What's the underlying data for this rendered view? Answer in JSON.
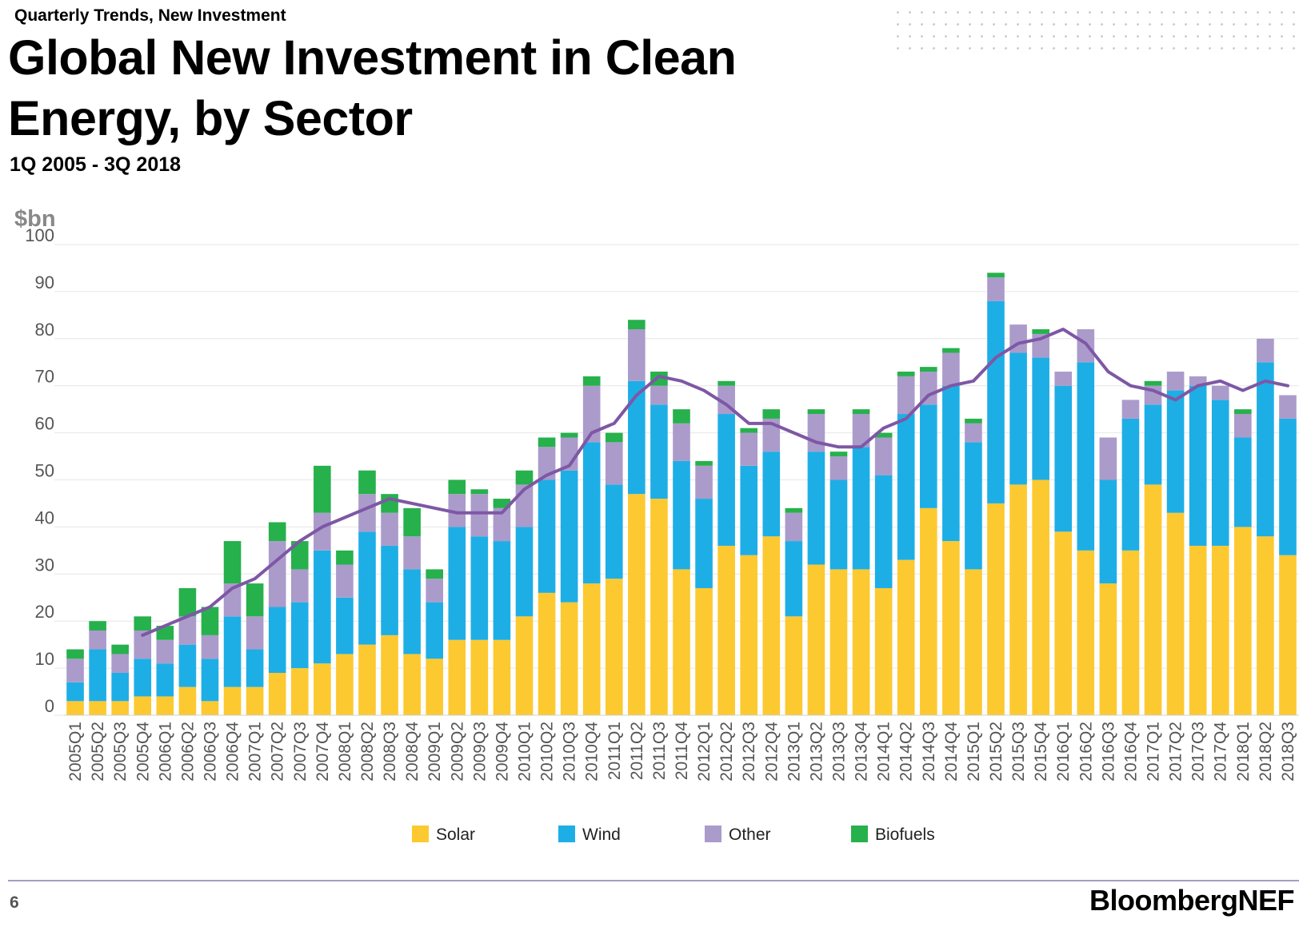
{
  "header": {
    "kicker": "Quarterly Trends, New Investment",
    "title": "Global New Investment in Clean Energy, by Sector",
    "subtitle": "1Q 2005 - 3Q 2018"
  },
  "footer": {
    "page_number": "6",
    "brand": "BloombergNEF"
  },
  "colors": {
    "solar": "#fcc931",
    "wind": "#1eaee6",
    "other": "#ab9bcb",
    "biofuels": "#26b14c",
    "trend": "#7e57a5",
    "axis_text": "#555555",
    "grid": "#e6e6e6"
  },
  "chart_data": {
    "type": "bar",
    "stacked": true,
    "ylabel": "$bn",
    "ylim": [
      0,
      100
    ],
    "yticks": [
      0,
      10,
      20,
      30,
      40,
      50,
      60,
      70,
      80,
      90,
      100
    ],
    "grid": true,
    "legend_position": "bottom",
    "categories": [
      "2005Q1",
      "2005Q2",
      "2005Q3",
      "2005Q4",
      "2006Q1",
      "2006Q2",
      "2006Q3",
      "2006Q4",
      "2007Q1",
      "2007Q2",
      "2007Q3",
      "2007Q4",
      "2008Q1",
      "2008Q2",
      "2008Q3",
      "2008Q4",
      "2009Q1",
      "2009Q2",
      "2009Q3",
      "2009Q4",
      "2010Q1",
      "2010Q2",
      "2010Q3",
      "2010Q4",
      "2011Q1",
      "2011Q2",
      "2011Q3",
      "2011Q4",
      "2012Q1",
      "2012Q2",
      "2012Q3",
      "2012Q4",
      "2013Q1",
      "2013Q2",
      "2013Q3",
      "2013Q4",
      "2014Q1",
      "2014Q2",
      "2014Q3",
      "2014Q4",
      "2015Q1",
      "2015Q2",
      "2015Q3",
      "2015Q4",
      "2016Q1",
      "2016Q2",
      "2016Q3",
      "2016Q4",
      "2017Q1",
      "2017Q2",
      "2017Q3",
      "2017Q4",
      "2018Q1",
      "2018Q2",
      "2018Q3"
    ],
    "series": [
      {
        "name": "Solar",
        "color": "#fcc931",
        "values": [
          3,
          3,
          3,
          4,
          4,
          6,
          3,
          6,
          6,
          9,
          10,
          11,
          13,
          15,
          17,
          13,
          12,
          16,
          16,
          16,
          21,
          26,
          24,
          28,
          29,
          47,
          46,
          31,
          27,
          36,
          34,
          38,
          21,
          32,
          31,
          31,
          27,
          33,
          44,
          37,
          31,
          45,
          49,
          50,
          39,
          35,
          28,
          35,
          49,
          43,
          36,
          36,
          40,
          38,
          34
        ]
      },
      {
        "name": "Wind",
        "color": "#1eaee6",
        "values": [
          4,
          11,
          6,
          8,
          7,
          9,
          9,
          15,
          8,
          14,
          14,
          24,
          12,
          24,
          19,
          18,
          12,
          24,
          22,
          21,
          19,
          24,
          28,
          30,
          20,
          24,
          20,
          23,
          19,
          28,
          19,
          18,
          16,
          24,
          19,
          26,
          24,
          31,
          22,
          33,
          27,
          43,
          28,
          26,
          31,
          40,
          22,
          28,
          17,
          26,
          34,
          31,
          19,
          37,
          29
        ]
      },
      {
        "name": "Other",
        "color": "#ab9bcb",
        "values": [
          5,
          4,
          4,
          6,
          5,
          6,
          5,
          7,
          7,
          14,
          7,
          8,
          7,
          8,
          7,
          7,
          5,
          7,
          9,
          7,
          9,
          7,
          7,
          12,
          9,
          11,
          4,
          8,
          7,
          6,
          7,
          7,
          6,
          8,
          5,
          7,
          8,
          8,
          7,
          7,
          4,
          5,
          6,
          5,
          3,
          7,
          9,
          4,
          4,
          4,
          2,
          3,
          5,
          5,
          5
        ]
      },
      {
        "name": "Biofuels",
        "color": "#26b14c",
        "values": [
          2,
          2,
          2,
          3,
          3,
          6,
          6,
          9,
          7,
          4,
          6,
          10,
          3,
          5,
          4,
          6,
          2,
          3,
          1,
          2,
          3,
          2,
          1,
          2,
          2,
          2,
          3,
          3,
          1,
          1,
          1,
          2,
          1,
          1,
          1,
          1,
          1,
          1,
          1,
          1,
          1,
          1,
          0,
          1,
          0,
          0,
          0,
          0,
          1,
          0,
          0,
          0,
          1,
          0,
          0
        ]
      }
    ],
    "trend_line": {
      "start_index": 3,
      "values": [
        17,
        19,
        21,
        23,
        27,
        29,
        33,
        37,
        40,
        42,
        44,
        46,
        45,
        44,
        43,
        43,
        43,
        48,
        51,
        53,
        60,
        62,
        68,
        72,
        71,
        69,
        66,
        62,
        62,
        60,
        58,
        57,
        57,
        61,
        63,
        68,
        70,
        71,
        76,
        79,
        80,
        82,
        79,
        73,
        70,
        69,
        67,
        70,
        71,
        69,
        71,
        70
      ]
    }
  }
}
